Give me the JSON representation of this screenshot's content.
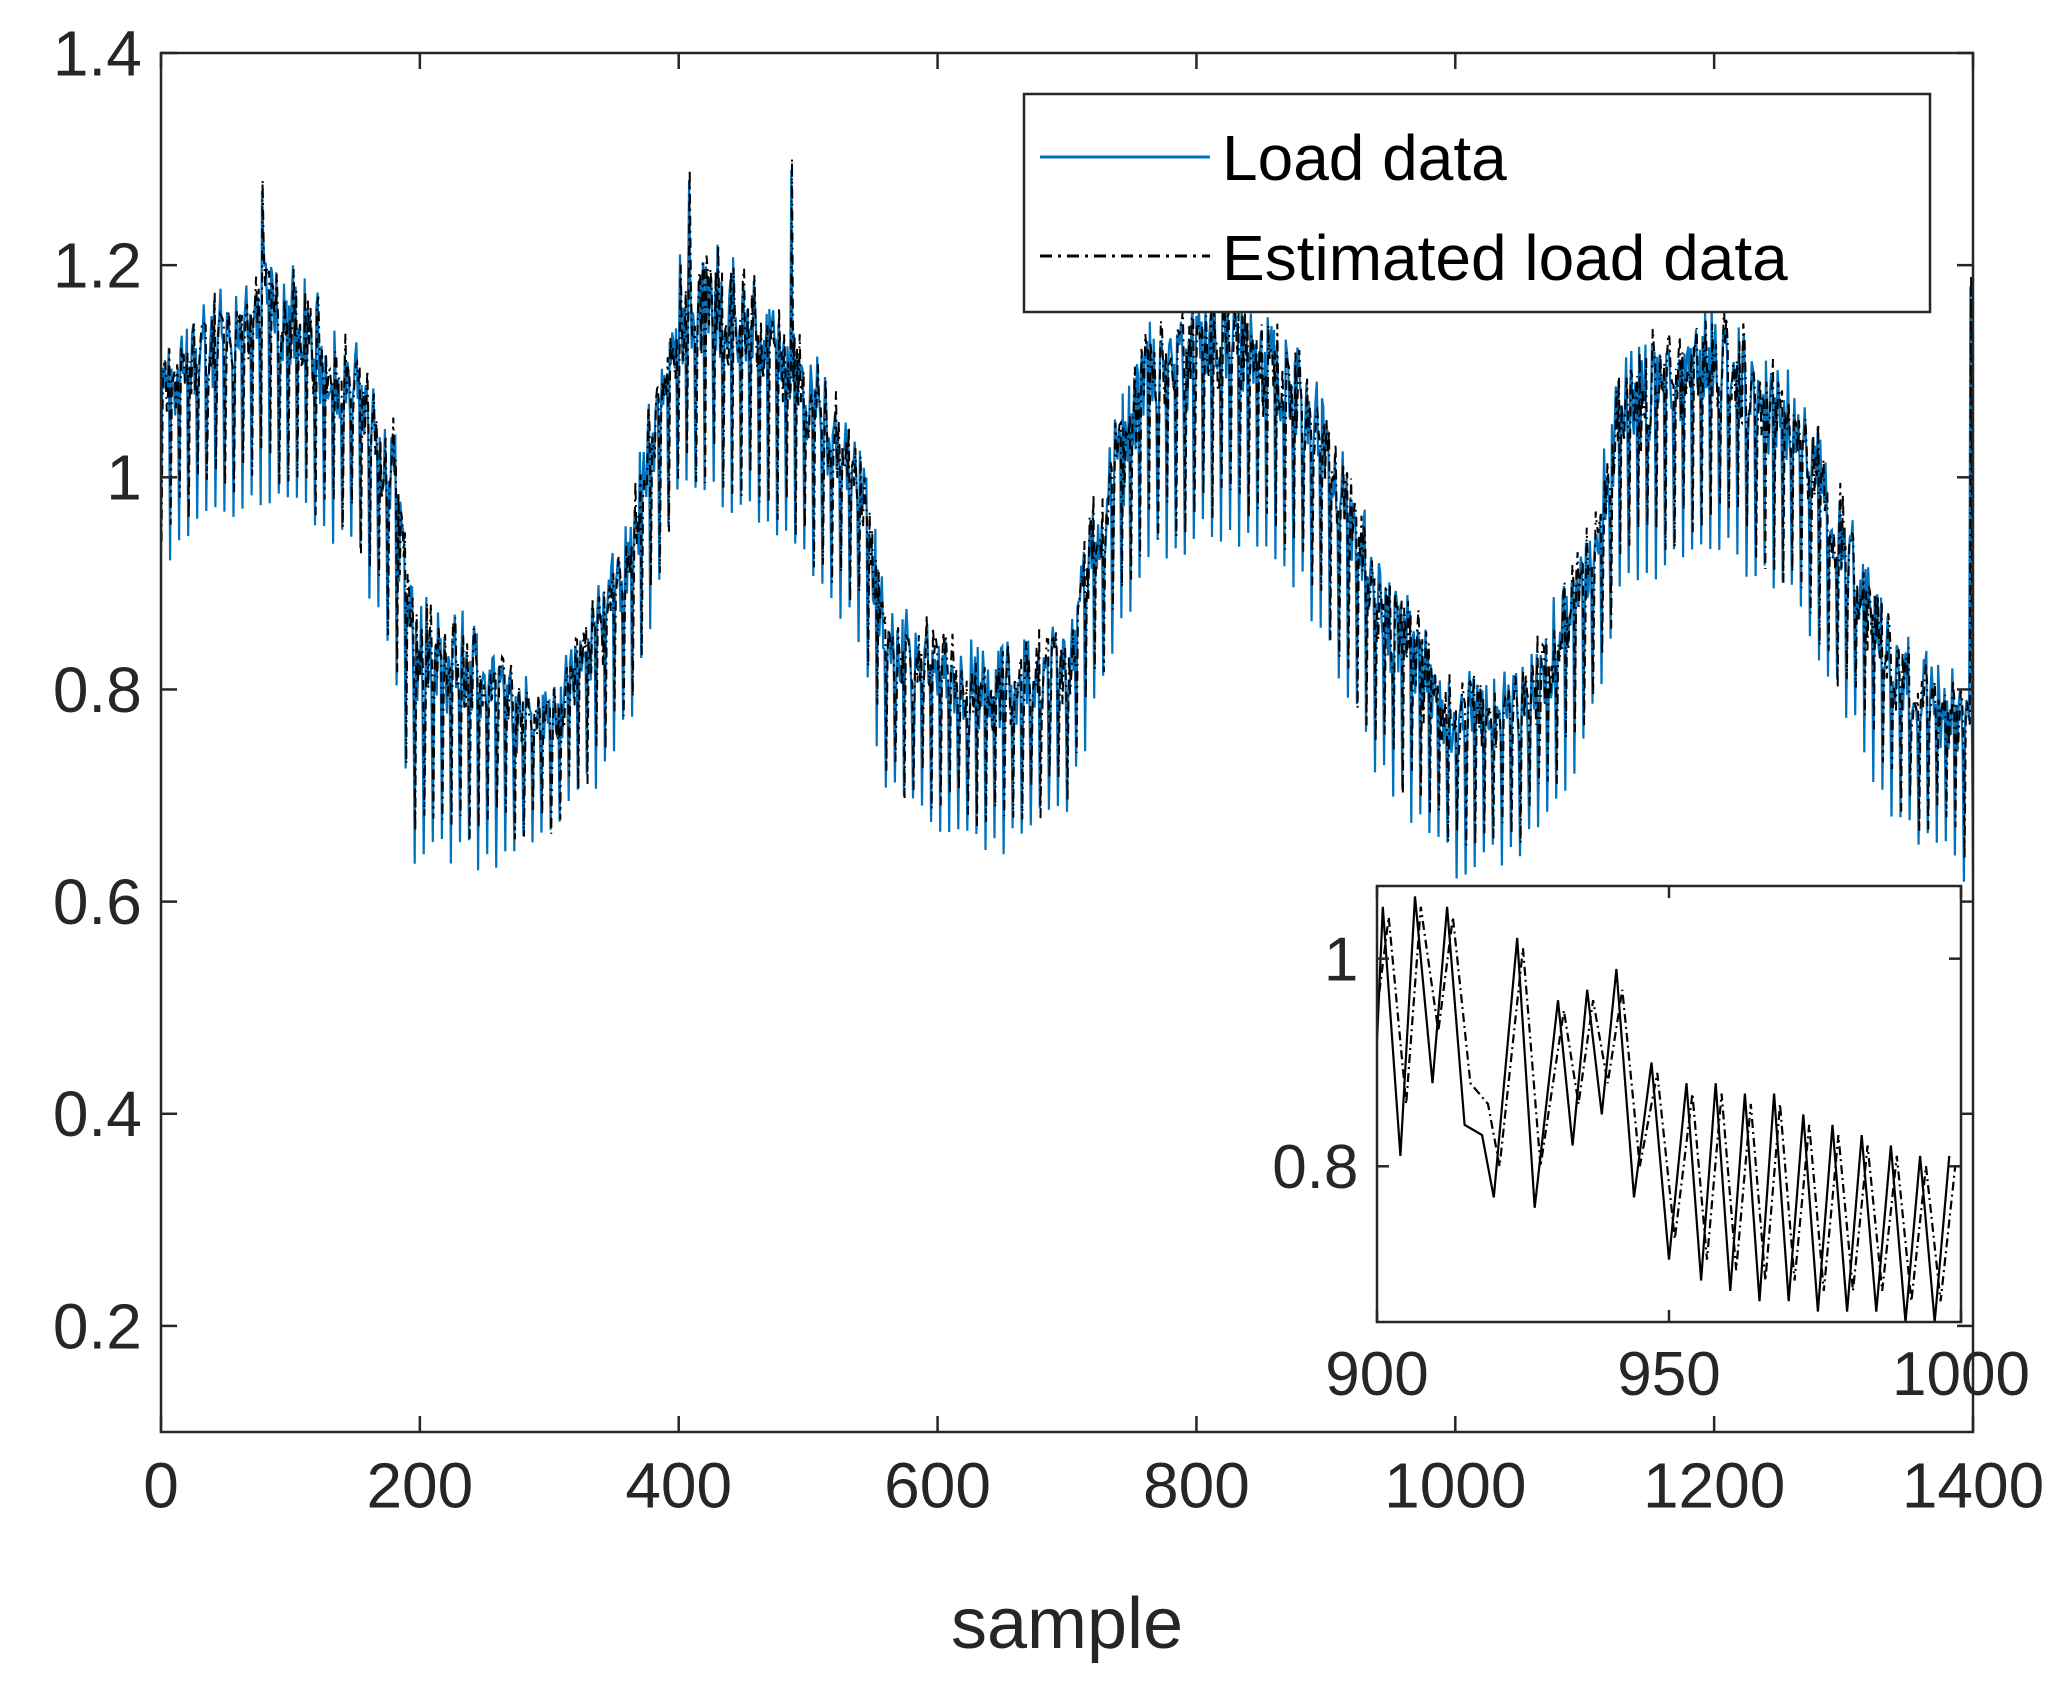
{
  "chart_data": [
    {
      "type": "line",
      "xlabel": "sample",
      "ylabel": "",
      "xlim": [
        0,
        1400
      ],
      "ylim": [
        0.1,
        1.4
      ],
      "xticks": [
        0,
        200,
        400,
        600,
        800,
        1000,
        1200,
        1400
      ],
      "xtick_labels": [
        "0",
        "200",
        "400",
        "600",
        "800",
        "1000",
        "1200",
        "1400"
      ],
      "yticks": [
        0.2,
        0.4,
        0.6,
        0.8,
        1.0,
        1.2,
        1.4
      ],
      "ytick_labels": [
        "0.2",
        "0.4",
        "0.6",
        "0.8",
        "1",
        "1.2",
        "1.4"
      ],
      "legend": {
        "position": "top-right",
        "entries": [
          "Load data",
          "Estimated load data"
        ]
      },
      "series": [
        {
          "name": "Load data",
          "style": "solid",
          "color": "#0072BD"
        },
        {
          "name": "Estimated load data",
          "style": "dash-dot",
          "color": "#000000"
        }
      ],
      "envelope": {
        "x": [
          0,
          30,
          80,
          150,
          180,
          195,
          250,
          300,
          360,
          400,
          430,
          480,
          540,
          560,
          640,
          700,
          720,
          760,
          820,
          880,
          920,
          950,
          1000,
          1050,
          1100,
          1130,
          1200,
          1260,
          1300,
          1340,
          1400
        ],
        "upper": [
          1.12,
          1.16,
          1.22,
          1.13,
          1.06,
          0.88,
          0.86,
          0.8,
          0.96,
          1.2,
          1.22,
          1.15,
          1.05,
          0.88,
          0.83,
          0.87,
          0.98,
          1.14,
          1.18,
          1.12,
          1.0,
          0.9,
          0.82,
          0.82,
          0.94,
          1.12,
          1.16,
          1.1,
          0.98,
          0.86,
          0.8
        ],
        "lower": [
          0.92,
          0.96,
          0.98,
          0.93,
          0.82,
          0.64,
          0.64,
          0.65,
          0.76,
          0.98,
          0.98,
          0.94,
          0.85,
          0.7,
          0.65,
          0.68,
          0.78,
          0.92,
          0.95,
          0.9,
          0.78,
          0.7,
          0.63,
          0.64,
          0.74,
          0.9,
          0.94,
          0.88,
          0.78,
          0.68,
          0.62
        ],
        "period": 7
      },
      "peaks": [
        {
          "x": 78,
          "y": 1.28
        },
        {
          "x": 408,
          "y": 1.29
        },
        {
          "x": 487,
          "y": 1.3
        },
        {
          "x": 1398,
          "y": 1.19
        }
      ]
    },
    {
      "type": "line",
      "inset": true,
      "xlim": [
        900,
        1000
      ],
      "ylim": [
        0.65,
        1.07
      ],
      "xticks": [
        900,
        950,
        1000
      ],
      "xtick_labels": [
        "900",
        "950",
        "1000"
      ],
      "yticks": [
        0.8,
        1.0
      ],
      "ytick_labels": [
        "0.8",
        "1"
      ],
      "series": [
        {
          "name": "Load data",
          "style": "solid",
          "color": "#000000",
          "peaks": [
            [
              901,
              1.05
            ],
            [
              906.5,
              1.06
            ],
            [
              912,
              1.05
            ],
            [
              924,
              1.02
            ],
            [
              931,
              0.96
            ],
            [
              936,
              0.97
            ],
            [
              941,
              0.99
            ],
            [
              947,
              0.9
            ],
            [
              953,
              0.88
            ],
            [
              958,
              0.88
            ],
            [
              963,
              0.87
            ],
            [
              968,
              0.87
            ],
            [
              973,
              0.85
            ],
            [
              978,
              0.84
            ],
            [
              983,
              0.83
            ],
            [
              988,
              0.82
            ],
            [
              993,
              0.81
            ],
            [
              998,
              0.81
            ]
          ],
          "troughs": [
            [
              904,
              0.81
            ],
            [
              909.5,
              0.88
            ],
            [
              915,
              0.84
            ],
            [
              918,
              0.83
            ],
            [
              920,
              0.77
            ],
            [
              927,
              0.76
            ],
            [
              933.5,
              0.82
            ],
            [
              938.5,
              0.85
            ],
            [
              944,
              0.77
            ],
            [
              950,
              0.71
            ],
            [
              955.5,
              0.69
            ],
            [
              960.5,
              0.68
            ],
            [
              965.5,
              0.67
            ],
            [
              970.5,
              0.67
            ],
            [
              975.5,
              0.66
            ],
            [
              980.5,
              0.66
            ],
            [
              985.5,
              0.66
            ],
            [
              990.5,
              0.65
            ],
            [
              995.5,
              0.65
            ]
          ]
        },
        {
          "name": "Estimated load data",
          "style": "dash-dot",
          "color": "#000000",
          "peaks": [
            [
              902,
              1.04
            ],
            [
              907.5,
              1.05
            ],
            [
              913,
              1.04
            ],
            [
              925,
              1.01
            ],
            [
              932,
              0.95
            ],
            [
              937,
              0.96
            ],
            [
              942,
              0.97
            ],
            [
              948,
              0.89
            ],
            [
              954,
              0.87
            ],
            [
              959,
              0.87
            ],
            [
              964,
              0.86
            ],
            [
              969,
              0.86
            ],
            [
              974,
              0.84
            ],
            [
              979,
              0.83
            ],
            [
              984,
              0.82
            ],
            [
              989,
              0.81
            ],
            [
              994,
              0.8
            ],
            [
              999,
              0.8
            ]
          ],
          "troughs": [
            [
              905,
              0.86
            ],
            [
              910.5,
              0.93
            ],
            [
              916,
              0.88
            ],
            [
              919,
              0.86
            ],
            [
              921,
              0.8
            ],
            [
              928,
              0.8
            ],
            [
              934.5,
              0.86
            ],
            [
              939.5,
              0.88
            ],
            [
              945,
              0.8
            ],
            [
              951,
              0.73
            ],
            [
              956.5,
              0.71
            ],
            [
              961.5,
              0.7
            ],
            [
              966.5,
              0.69
            ],
            [
              971.5,
              0.69
            ],
            [
              976.5,
              0.68
            ],
            [
              981.5,
              0.68
            ],
            [
              986.5,
              0.68
            ],
            [
              991.5,
              0.67
            ],
            [
              996.5,
              0.67
            ]
          ]
        }
      ]
    }
  ]
}
